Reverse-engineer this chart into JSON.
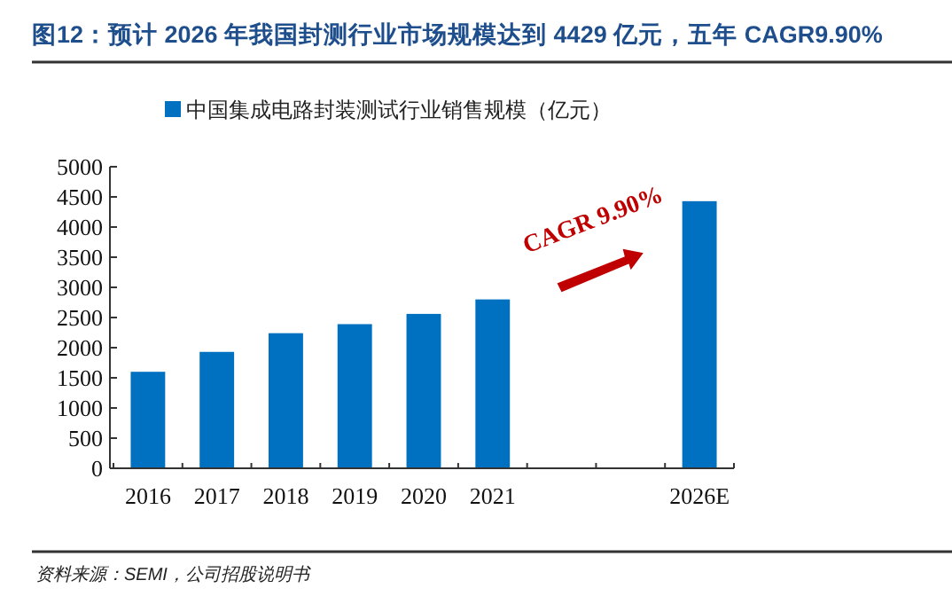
{
  "chart_data": {
    "type": "bar",
    "title": "图12：预计 2026 年我国封测行业市场规模达到 4429 亿元，五年 CAGR9.90%",
    "categories": [
      "2016",
      "2017",
      "2018",
      "2019",
      "2020",
      "2021",
      null,
      null,
      "2026E"
    ],
    "series": [
      {
        "name": "中国集成电路封装测试行业销售规模（亿元）",
        "color": "#0070c0",
        "values": [
          1600,
          1930,
          2240,
          2390,
          2560,
          2800,
          null,
          null,
          4429
        ]
      }
    ],
    "ylim": [
      0,
      5000
    ],
    "yticks": [
      0,
      500,
      1000,
      1500,
      2000,
      2500,
      3000,
      3500,
      4000,
      4500,
      5000
    ],
    "legend": "top",
    "grid": false,
    "annotations": [
      "CAGR 9.90%",
      "资料来源：SEMI，公司招股说明书"
    ]
  }
}
